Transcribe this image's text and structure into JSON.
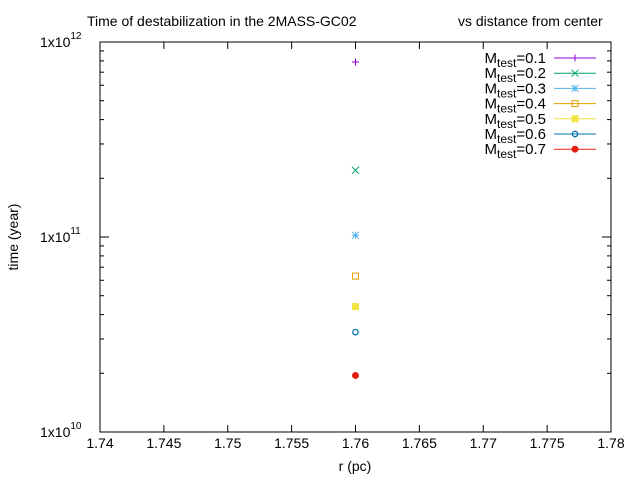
{
  "chart_data": {
    "type": "scatter",
    "title_left": "Time of destabilization in the 2MASS-GC02",
    "title_right": "vs distance from center",
    "xlabel": "r (pc)",
    "ylabel": "time (year)",
    "xlim": [
      1.74,
      1.78
    ],
    "ylim": [
      10000000000.0,
      1000000000000.0
    ],
    "yscale": "log",
    "legend_position": "top-right",
    "x_ticks": [
      "1.74",
      "1.745",
      "1.75",
      "1.755",
      "1.76",
      "1.765",
      "1.77",
      "1.775",
      "1.78"
    ],
    "y_ticks": [
      {
        "value": 10000000000.0,
        "base": "1x10",
        "exp": "10"
      },
      {
        "value": 100000000000.0,
        "base": "1x10",
        "exp": "11"
      },
      {
        "value": 1000000000000.0,
        "base": "1x10",
        "exp": "12"
      }
    ],
    "series": [
      {
        "name": "M",
        "sub": "test",
        "eq": "=0.1",
        "color": "#9400d3",
        "marker": "plus",
        "x": [
          1.76
        ],
        "y": [
          790000000000.0
        ]
      },
      {
        "name": "M",
        "sub": "test",
        "eq": "=0.2",
        "color": "#009e73",
        "marker": "cross",
        "x": [
          1.76
        ],
        "y": [
          220000000000.0
        ]
      },
      {
        "name": "M",
        "sub": "test",
        "eq": "=0.3",
        "color": "#56b4e9",
        "marker": "star",
        "x": [
          1.76
        ],
        "y": [
          102000000000.0
        ]
      },
      {
        "name": "M",
        "sub": "test",
        "eq": "=0.4",
        "color": "#e69f00",
        "marker": "open-square",
        "x": [
          1.76
        ],
        "y": [
          63000000000.0
        ]
      },
      {
        "name": "M",
        "sub": "test",
        "eq": "=0.5",
        "color": "#f0e442",
        "marker": "filled-square",
        "x": [
          1.76
        ],
        "y": [
          44000000000.0
        ]
      },
      {
        "name": "M",
        "sub": "test",
        "eq": "=0.6",
        "color": "#0072b2",
        "marker": "open-circle",
        "x": [
          1.76
        ],
        "y": [
          32500000000.0
        ]
      },
      {
        "name": "M",
        "sub": "test",
        "eq": "=0.7",
        "color": "#e51e10",
        "marker": "filled-circle",
        "x": [
          1.76
        ],
        "y": [
          19500000000.0
        ]
      }
    ]
  }
}
